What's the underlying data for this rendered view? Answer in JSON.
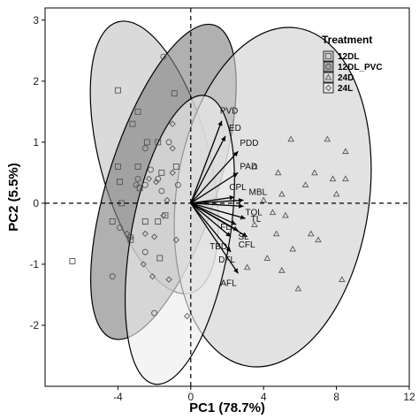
{
  "chart_data": {
    "type": "scatter",
    "subtype": "pca-biplot",
    "xlabel": "PC1 (78.7%)",
    "ylabel": "PC2 (5.5%)",
    "xlim": [
      -8,
      12
    ],
    "ylim": [
      -3,
      3.2
    ],
    "xticks": [
      -4,
      0,
      4,
      8,
      12
    ],
    "yticks": [
      -2,
      -1,
      0,
      1,
      2,
      3
    ],
    "reference_lines": {
      "x": 0,
      "y": 0,
      "style": "dashed"
    },
    "legend": {
      "title": "Treatment",
      "position": "top-right",
      "entries": [
        "12DL",
        "12DL_PVC",
        "24D",
        "24L"
      ]
    },
    "series": [
      {
        "name": "12DL",
        "marker": "square",
        "ellipse": {
          "cx": -2.0,
          "cy": 0.75,
          "rx": 3.0,
          "ry": 2.3,
          "angle_deg": 15,
          "fill": "#c3c3c3"
        },
        "points": [
          [
            -6.5,
            -0.95
          ],
          [
            -4.0,
            1.85
          ],
          [
            -2.9,
            1.5
          ],
          [
            -1.8,
            1.0
          ],
          [
            -2.4,
            1.0
          ],
          [
            -4.0,
            0.6
          ],
          [
            -2.9,
            0.6
          ],
          [
            -1.6,
            0.5
          ],
          [
            -3.9,
            0.35
          ],
          [
            -2.8,
            0.25
          ],
          [
            -4.3,
            -0.3
          ],
          [
            -3.3,
            -0.6
          ],
          [
            -1.8,
            -0.3
          ],
          [
            -2.5,
            -0.3
          ],
          [
            -1.7,
            -0.9
          ],
          [
            -0.9,
            1.8
          ],
          [
            -1.4,
            -0.2
          ],
          [
            -3.8,
            0.0
          ],
          [
            -0.8,
            0.6
          ],
          [
            -3.2,
            1.3
          ]
        ]
      },
      {
        "name": "12DL_PVC",
        "marker": "circle",
        "ellipse": {
          "cx": -1.5,
          "cy": 0.35,
          "rx": 3.0,
          "ry": 2.7,
          "angle_deg": -18,
          "fill": "#7f7f7f"
        },
        "points": [
          [
            -1.5,
            2.4
          ],
          [
            -1.2,
            1.0
          ],
          [
            -2.5,
            0.9
          ],
          [
            -3.0,
            0.3
          ],
          [
            -2.5,
            0.3
          ],
          [
            -1.8,
            0.4
          ],
          [
            -2.2,
            0.55
          ],
          [
            -0.7,
            0.3
          ],
          [
            -4.3,
            -1.2
          ],
          [
            -2.5,
            -0.8
          ],
          [
            -2.0,
            -1.8
          ],
          [
            -3.9,
            -0.4
          ],
          [
            -3.3,
            -0.55
          ],
          [
            -1.6,
            0.2
          ],
          [
            -2.9,
            0.4
          ]
        ]
      },
      {
        "name": "24D",
        "marker": "triangle",
        "ellipse": {
          "cx": 4.5,
          "cy": 0.1,
          "rx": 5.3,
          "ry": 2.8,
          "angle_deg": -8,
          "fill": "#d0d0d0"
        },
        "points": [
          [
            5.5,
            1.05
          ],
          [
            7.5,
            1.05
          ],
          [
            8.5,
            0.85
          ],
          [
            3.5,
            0.6
          ],
          [
            4.8,
            0.5
          ],
          [
            6.8,
            0.5
          ],
          [
            8.5,
            0.4
          ],
          [
            6.3,
            0.3
          ],
          [
            7.8,
            0.4
          ],
          [
            5.0,
            0.15
          ],
          [
            8.0,
            0.15
          ],
          [
            4.0,
            0.05
          ],
          [
            5.2,
            -0.2
          ],
          [
            3.5,
            -0.35
          ],
          [
            4.7,
            -0.5
          ],
          [
            5.6,
            -0.75
          ],
          [
            7.0,
            -0.6
          ],
          [
            6.6,
            -0.5
          ],
          [
            4.2,
            -0.9
          ],
          [
            5.0,
            -1.1
          ],
          [
            5.9,
            -1.4
          ],
          [
            8.3,
            -1.25
          ],
          [
            3.1,
            -1.05
          ],
          [
            4.5,
            -0.15
          ]
        ]
      },
      {
        "name": "24L",
        "marker": "diamond",
        "ellipse": {
          "cx": -0.6,
          "cy": -0.6,
          "rx": 2.7,
          "ry": 2.4,
          "angle_deg": -10,
          "fill": "#eeeeee"
        },
        "points": [
          [
            -1.0,
            1.3
          ],
          [
            -1.0,
            0.9
          ],
          [
            -1.9,
            0.35
          ],
          [
            -2.3,
            0.4
          ],
          [
            -1.3,
            0.05
          ],
          [
            -2.5,
            -0.5
          ],
          [
            -2.0,
            -0.55
          ],
          [
            -1.5,
            -0.2
          ],
          [
            -0.8,
            -0.6
          ],
          [
            -2.1,
            -1.2
          ],
          [
            -1.2,
            -1.25
          ],
          [
            -2.6,
            -1.0
          ],
          [
            -0.2,
            -1.85
          ],
          [
            -3.5,
            -0.5
          ],
          [
            -1.0,
            0.5
          ]
        ]
      }
    ],
    "loadings": [
      {
        "label": "PVD",
        "x": 1.7,
        "y": 1.35
      },
      {
        "label": "ED",
        "x": 1.9,
        "y": 1.1
      },
      {
        "label": "PDD",
        "x": 2.6,
        "y": 0.85
      },
      {
        "label": "PAD",
        "x": 2.6,
        "y": 0.5
      },
      {
        "label": "CPL",
        "x": 2.4,
        "y": 0.1
      },
      {
        "label": "MBL",
        "x": 2.9,
        "y": 0.05
      },
      {
        "label": "TOL",
        "x": 2.9,
        "y": -0.05
      },
      {
        "label": "TL",
        "x": 3.0,
        "y": -0.25
      },
      {
        "label": "FL",
        "x": 2.5,
        "y": -0.35
      },
      {
        "label": "SL",
        "x": 2.6,
        "y": -0.45
      },
      {
        "label": "CFL",
        "x": 3.1,
        "y": -0.55
      },
      {
        "label": "TBD",
        "x": 2.2,
        "y": -0.55
      },
      {
        "label": "DFL",
        "x": 2.2,
        "y": -0.8
      },
      {
        "label": "AFL",
        "x": 2.6,
        "y": -1.15
      }
    ],
    "loading_label_text": [
      "PVD",
      "ED",
      "PDD",
      "PAD",
      "CPL",
      "MBL",
      "TOL",
      "TL",
      "FL",
      "SL",
      "CFL",
      "TBD",
      "DFL",
      "AFL"
    ]
  }
}
